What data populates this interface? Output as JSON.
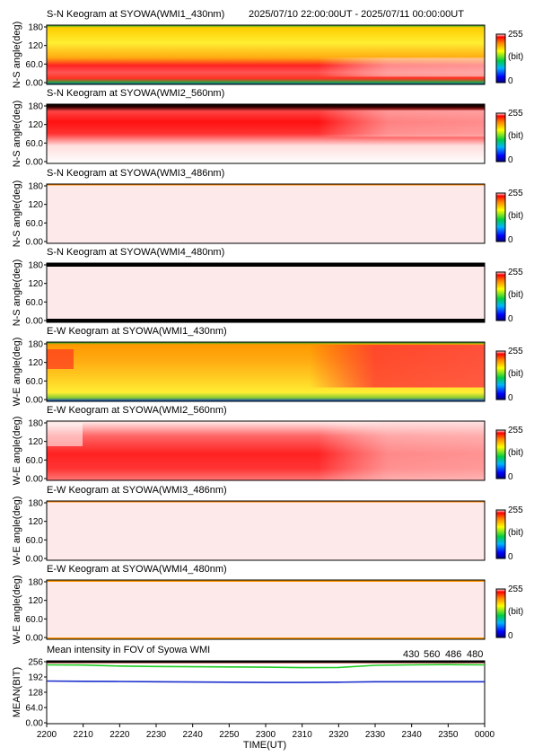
{
  "header": {
    "time_range": "2025/07/10 22:00:00UT - 2025/07/11 00:00:00UT"
  },
  "colorbar": {
    "max_label": "255",
    "unit_label": "(bit)",
    "min_label": "0"
  },
  "x_axis": {
    "label": "TIME(UT)",
    "ticks": [
      "2200",
      "2210",
      "2220",
      "2230",
      "2240",
      "2250",
      "2300",
      "2310",
      "2320",
      "2330",
      "2340",
      "2350",
      "0000"
    ]
  },
  "chart_data": [
    {
      "type": "heatmap",
      "title": "S-N Keogram at SYOWA(WMI1_430nm)",
      "ylabel": "N-S angle(deg)",
      "ytick_labels": [
        "180",
        "120",
        "60.0",
        "0.00"
      ],
      "ylim": [
        0,
        180
      ],
      "scale": [
        0,
        255
      ],
      "style": "yellow-red"
    },
    {
      "type": "heatmap",
      "title": "S-N Keogram at SYOWA(WMI2_560nm)",
      "ylabel": "N-S angle(deg)",
      "ytick_labels": [
        "180",
        "120",
        "60.0",
        "0.00"
      ],
      "ylim": [
        0,
        180
      ],
      "scale": [
        0,
        255
      ],
      "style": "red-white"
    },
    {
      "type": "heatmap",
      "title": "S-N Keogram at SYOWA(WMI3_486nm)",
      "ylabel": "N-S angle(deg)",
      "ytick_labels": [
        "180",
        "120",
        "60.0",
        "0.00"
      ],
      "ylim": [
        0,
        180
      ],
      "scale": [
        0,
        255
      ],
      "style": "saturated"
    },
    {
      "type": "heatmap",
      "title": "S-N Keogram at SYOWA(WMI4_480nm)",
      "ylabel": "N-S angle(deg)",
      "ytick_labels": [
        "180",
        "120",
        "60.0",
        "0.00"
      ],
      "ylim": [
        0,
        180
      ],
      "scale": [
        0,
        255
      ],
      "style": "saturated-black"
    },
    {
      "type": "heatmap",
      "title": "E-W Keogram at SYOWA(WMI1_430nm)",
      "ylabel": "W-E angle(deg)",
      "ytick_labels": [
        "180",
        "120",
        "60.0",
        "0.00"
      ],
      "ylim": [
        0,
        180
      ],
      "scale": [
        0,
        255
      ],
      "style": "yellow-red"
    },
    {
      "type": "heatmap",
      "title": "E-W Keogram at SYOWA(WMI2_560nm)",
      "ylabel": "W-E angle(deg)",
      "ytick_labels": [
        "180",
        "120",
        "60.0",
        "0.00"
      ],
      "ylim": [
        0,
        180
      ],
      "scale": [
        0,
        255
      ],
      "style": "red-white"
    },
    {
      "type": "heatmap",
      "title": "E-W Keogram at SYOWA(WMI3_486nm)",
      "ylabel": "W-E angle(deg)",
      "ytick_labels": [
        "180",
        "120",
        "60.0",
        "0.00"
      ],
      "ylim": [
        0,
        180
      ],
      "scale": [
        0,
        255
      ],
      "style": "saturated"
    },
    {
      "type": "heatmap",
      "title": "E-W Keogram at SYOWA(WMI4_480nm)",
      "ylabel": "W-E angle(deg)",
      "ytick_labels": [
        "180",
        "120",
        "60.0",
        "0.00"
      ],
      "ylim": [
        0,
        180
      ],
      "scale": [
        0,
        255
      ],
      "style": "saturated-orange"
    },
    {
      "type": "line",
      "title": "Mean intensity in FOV of Syowa WMI",
      "ylabel": "MEAN(BIT)",
      "ytick_labels": [
        "256",
        "192",
        "128",
        "64.0",
        "0.00"
      ],
      "ylim": [
        0,
        256
      ],
      "x": [
        "2200",
        "2210",
        "2220",
        "2230",
        "2240",
        "2250",
        "2300",
        "2310",
        "2320",
        "2330",
        "2340",
        "2350",
        "0000"
      ],
      "series": [
        {
          "name": "430",
          "color": "#1a2ecc",
          "values": [
            175,
            174,
            173,
            172,
            171,
            170,
            169,
            169,
            170,
            172,
            172,
            172,
            172
          ]
        },
        {
          "name": "560",
          "color": "#22cc22",
          "values": [
            243,
            242,
            238,
            236,
            235,
            234,
            233,
            231,
            232,
            241,
            243,
            244,
            243
          ]
        },
        {
          "name": "486",
          "color": "#cc1111",
          "values": [
            253,
            253,
            253,
            253,
            253,
            253,
            253,
            253,
            253,
            253,
            253,
            253,
            253
          ]
        },
        {
          "name": "480",
          "color": "#000000",
          "values": [
            255,
            255,
            255,
            255,
            255,
            255,
            255,
            255,
            255,
            255,
            255,
            255,
            255
          ]
        }
      ]
    }
  ]
}
